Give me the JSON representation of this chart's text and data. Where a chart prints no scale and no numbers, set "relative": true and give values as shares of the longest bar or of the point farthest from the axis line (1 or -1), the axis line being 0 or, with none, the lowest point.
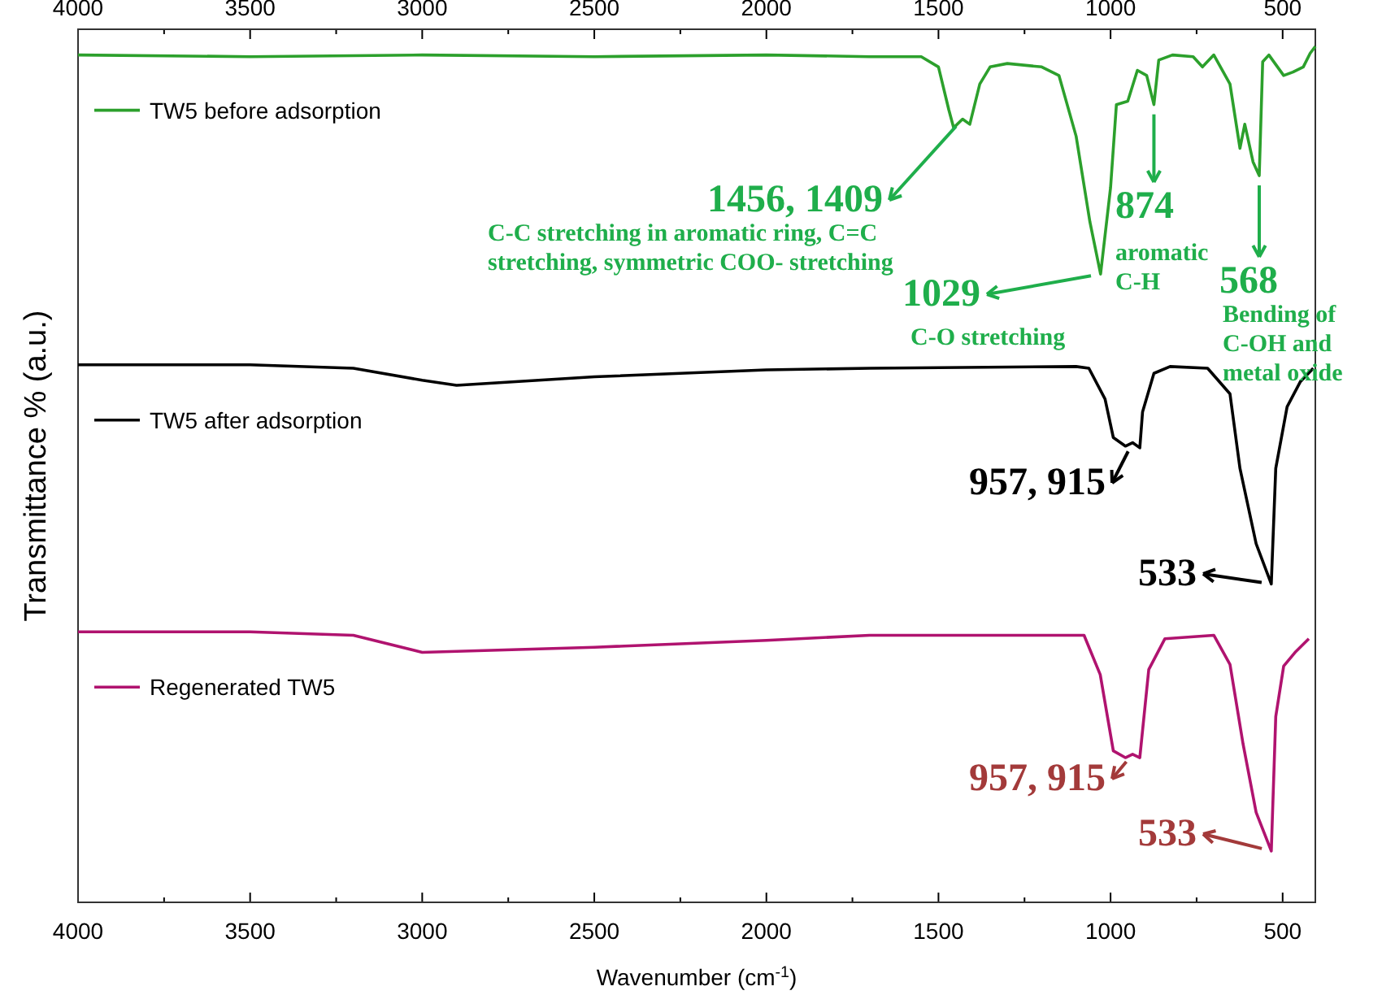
{
  "chart_data": {
    "type": "line",
    "relative": true,
    "xlabel": "Wavenumber (cm$^{-1}$)",
    "ylabel": "Transmittance % (a.u.)",
    "xlim": [
      4000,
      405
    ],
    "xticks": [
      4000,
      {
        "value": 3750,
        "label": null
      },
      3500,
      {
        "value": 3250,
        "label": null
      },
      3000,
      {
        "value": 2750,
        "label": null
      },
      2500,
      {
        "value": 2250,
        "label": null
      },
      2000,
      {
        "value": 1750,
        "label": null
      },
      1500,
      {
        "value": 1250,
        "label": null
      },
      1000,
      {
        "value": 750,
        "label": null
      },
      500
    ],
    "x2lim": [
      4000,
      405
    ],
    "x2ticks": [
      4000,
      {
        "value": 3750,
        "label": null
      },
      3500,
      {
        "value": 3250,
        "label": null
      },
      3000,
      {
        "value": 2750,
        "label": null
      },
      2500,
      {
        "value": 2250,
        "label": null
      },
      2000,
      {
        "value": 1750,
        "label": null
      },
      1500,
      {
        "value": 1250,
        "label": null
      },
      1000,
      {
        "value": 750,
        "label": null
      },
      500
    ],
    "legend": "left",
    "grid": false,
    "marker": "none",
    "line_style": "solid",
    "series": [
      {
        "name": "TW5 before adsorption",
        "color": "#2ca02c",
        "x": [
          4000,
          3500,
          3000,
          2500,
          2000,
          1700,
          1550,
          1500,
          1470,
          1456,
          1430,
          1409,
          1380,
          1350,
          1300,
          1200,
          1150,
          1100,
          1060,
          1029,
          1000,
          983,
          950,
          922,
          895,
          874,
          860,
          820,
          760,
          733,
          700,
          653,
          624,
          610,
          586,
          568,
          558,
          540,
          497,
          470,
          440,
          420,
          405
        ],
        "values": [
          0.99,
          0.988,
          0.99,
          0.988,
          0.99,
          0.988,
          0.988,
          0.976,
          0.926,
          0.905,
          0.915,
          0.909,
          0.956,
          0.976,
          0.98,
          0.976,
          0.966,
          0.895,
          0.795,
          0.734,
          0.835,
          0.932,
          0.936,
          0.972,
          0.966,
          0.932,
          0.984,
          0.99,
          0.988,
          0.976,
          0.99,
          0.956,
          0.881,
          0.909,
          0.865,
          0.849,
          0.982,
          0.99,
          0.966,
          0.97,
          0.976,
          0.992,
          1
        ]
      },
      {
        "name": "TW5 after adsorption",
        "color": "#000000",
        "x": [
          4000,
          3500,
          3200,
          3000,
          2900,
          2500,
          2000,
          1700,
          1100,
          1063,
          1016,
          992,
          957,
          936,
          915,
          907,
          874,
          827,
          718,
          653,
          624,
          577,
          533,
          520,
          487,
          449,
          411
        ],
        "values": [
          0.628,
          0.628,
          0.624,
          0.61,
          0.604,
          0.614,
          0.622,
          0.624,
          0.626,
          0.624,
          0.588,
          0.543,
          0.533,
          0.537,
          0.531,
          0.573,
          0.618,
          0.626,
          0.624,
          0.594,
          0.507,
          0.419,
          0.372,
          0.507,
          0.579,
          0.608,
          0.624
        ]
      },
      {
        "name": "Regenerated TW5",
        "color": "#b0136f",
        "x": [
          4000,
          3500,
          3200,
          3000,
          2500,
          2000,
          1700,
          1077,
          1030,
          992,
          957,
          936,
          915,
          889,
          842,
          700,
          653,
          615,
          577,
          533,
          520,
          497,
          464,
          424
        ],
        "values": [
          0.316,
          0.316,
          0.312,
          0.292,
          0.298,
          0.306,
          0.312,
          0.312,
          0.266,
          0.177,
          0.169,
          0.173,
          0.169,
          0.272,
          0.308,
          0.312,
          0.278,
          0.185,
          0.105,
          0.06,
          0.217,
          0.276,
          0.292,
          0.308
        ]
      }
    ],
    "annotations": [
      {
        "text": "1456, 1409",
        "x": 1430,
        "y": 0.915
      },
      "C-C stretching in aromatic ring, C=C stretching, symmetric COO- stretching",
      {
        "text": "1029",
        "x": 1029,
        "y": 0.734
      },
      "C-O stretching",
      {
        "text": "874",
        "x": 874,
        "y": 0.932
      },
      "aromatic C-H",
      {
        "text": "568",
        "x": 568,
        "y": 0.849
      },
      "Bending of C-OH and metal oxide",
      {
        "text": "957, 915",
        "x": 936,
        "y": 0.537
      },
      {
        "text": "533",
        "x": 533,
        "y": 0.372
      },
      {
        "text": "957, 915",
        "x": 936,
        "y": 0.173
      },
      {
        "text": "533",
        "x": 533,
        "y": 0.06
      }
    ]
  }
}
